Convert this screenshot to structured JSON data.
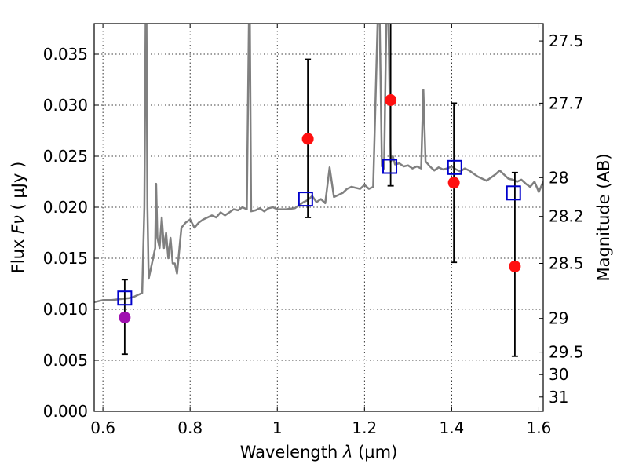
{
  "chart_data": {
    "type": "scatter",
    "xlabel": "Wavelength",
    "xlabel_symbol": "λ",
    "xlabel_unit": "(μm)",
    "ylabel": "Flux",
    "ylabel_symbol": "Fν",
    "ylabel_unit": "( μJy )",
    "y2label": "Magnitude (AB)",
    "xlim": [
      0.58,
      1.61
    ],
    "ylim": [
      0.0,
      0.038
    ],
    "grid": true,
    "x_ticks": [
      {
        "value": 0.6,
        "label": "0.6"
      },
      {
        "value": 0.8,
        "label": "0.8"
      },
      {
        "value": 1.0,
        "label": "1"
      },
      {
        "value": 1.2,
        "label": "1.2"
      },
      {
        "value": 1.4,
        "label": "1.4"
      },
      {
        "value": 1.6,
        "label": "1.6"
      }
    ],
    "y_ticks": [
      {
        "value": 0.0,
        "label": "0.000"
      },
      {
        "value": 0.005,
        "label": "0.005"
      },
      {
        "value": 0.01,
        "label": "0.010"
      },
      {
        "value": 0.015,
        "label": "0.015"
      },
      {
        "value": 0.02,
        "label": "0.020"
      },
      {
        "value": 0.025,
        "label": "0.025"
      },
      {
        "value": 0.03,
        "label": "0.030"
      },
      {
        "value": 0.035,
        "label": "0.035"
      }
    ],
    "y2_ticks": [
      {
        "flux": 0.0363,
        "label": "27.5"
      },
      {
        "flux": 0.0302,
        "label": "27.7"
      },
      {
        "flux": 0.0229,
        "label": "28"
      },
      {
        "flux": 0.0191,
        "label": "28.2"
      },
      {
        "flux": 0.0145,
        "label": "28.5"
      },
      {
        "flux": 0.0091,
        "label": "29"
      },
      {
        "flux": 0.0058,
        "label": "29.5"
      },
      {
        "flux": 0.0036,
        "label": "30"
      },
      {
        "flux": 0.0014,
        "label": "31"
      }
    ],
    "series": [
      {
        "type": "line",
        "color": "#808080",
        "x": [
          0.58,
          0.6,
          0.62,
          0.64,
          0.66,
          0.67,
          0.68,
          0.69,
          0.695,
          0.698,
          0.7,
          0.702,
          0.705,
          0.71,
          0.715,
          0.72,
          0.722,
          0.725,
          0.73,
          0.735,
          0.74,
          0.745,
          0.75,
          0.755,
          0.76,
          0.765,
          0.77,
          0.78,
          0.79,
          0.8,
          0.81,
          0.82,
          0.83,
          0.84,
          0.85,
          0.86,
          0.87,
          0.88,
          0.89,
          0.9,
          0.91,
          0.92,
          0.93,
          0.935,
          0.937,
          0.94,
          0.95,
          0.96,
          0.97,
          0.98,
          0.99,
          1.0,
          1.02,
          1.04,
          1.06,
          1.07,
          1.08,
          1.09,
          1.1,
          1.11,
          1.12,
          1.13,
          1.14,
          1.15,
          1.16,
          1.17,
          1.18,
          1.19,
          1.2,
          1.21,
          1.22,
          1.23,
          1.235,
          1.24,
          1.245,
          1.25,
          1.255,
          1.26,
          1.265,
          1.27,
          1.28,
          1.29,
          1.3,
          1.31,
          1.32,
          1.33,
          1.335,
          1.34,
          1.35,
          1.36,
          1.37,
          1.38,
          1.39,
          1.4,
          1.41,
          1.42,
          1.43,
          1.44,
          1.45,
          1.46,
          1.47,
          1.48,
          1.49,
          1.5,
          1.51,
          1.52,
          1.53,
          1.54,
          1.55,
          1.56,
          1.57,
          1.58,
          1.59,
          1.6,
          1.61
        ],
        "y": [
          0.0107,
          0.0109,
          0.0109,
          0.011,
          0.0111,
          0.0112,
          0.0114,
          0.0116,
          0.02,
          0.038,
          0.038,
          0.02,
          0.013,
          0.014,
          0.015,
          0.016,
          0.0223,
          0.017,
          0.016,
          0.019,
          0.016,
          0.0175,
          0.015,
          0.017,
          0.0145,
          0.0145,
          0.0135,
          0.018,
          0.0185,
          0.0188,
          0.018,
          0.0185,
          0.0188,
          0.019,
          0.0192,
          0.019,
          0.0195,
          0.0192,
          0.0195,
          0.0198,
          0.0197,
          0.02,
          0.0198,
          0.038,
          0.038,
          0.0196,
          0.0197,
          0.0199,
          0.0196,
          0.0199,
          0.02,
          0.0198,
          0.0198,
          0.0199,
          0.0205,
          0.0207,
          0.0211,
          0.0205,
          0.0208,
          0.0204,
          0.0239,
          0.021,
          0.0212,
          0.0214,
          0.0218,
          0.022,
          0.0219,
          0.0218,
          0.0222,
          0.0218,
          0.022,
          0.038,
          0.038,
          0.024,
          0.0238,
          0.038,
          0.038,
          0.0244,
          0.025,
          0.0242,
          0.0243,
          0.024,
          0.0241,
          0.0238,
          0.024,
          0.0238,
          0.0315,
          0.0245,
          0.024,
          0.0236,
          0.0239,
          0.0237,
          0.0238,
          0.024,
          0.0237,
          0.0235,
          0.0238,
          0.0236,
          0.0233,
          0.023,
          0.0228,
          0.0226,
          0.0229,
          0.0232,
          0.0236,
          0.0232,
          0.0228,
          0.0227,
          0.0225,
          0.0227,
          0.0223,
          0.022,
          0.0225,
          0.0215,
          0.0225
        ]
      },
      {
        "type": "errorbar",
        "color": "#000000",
        "x": [
          0.65,
          1.07,
          1.26,
          1.405,
          1.545
        ],
        "lower": [
          0.0056,
          0.019,
          0.0221,
          0.0146,
          0.0054
        ],
        "upper": [
          0.0129,
          0.0345,
          0.038,
          0.0302,
          0.0234
        ]
      },
      {
        "type": "marker",
        "marker": "circle",
        "points": [
          {
            "x": 0.65,
            "y": 0.0092,
            "color": "#a010b0"
          },
          {
            "x": 1.07,
            "y": 0.0267,
            "color": "#ff1010"
          },
          {
            "x": 1.26,
            "y": 0.0305,
            "color": "#ff1010"
          },
          {
            "x": 1.405,
            "y": 0.0224,
            "color": "#ff1010"
          },
          {
            "x": 1.545,
            "y": 0.0142,
            "color": "#ff1010"
          }
        ]
      },
      {
        "type": "marker",
        "marker": "square-open",
        "color": "#0000cc",
        "x": [
          0.65,
          1.065,
          1.258,
          1.407,
          1.542
        ],
        "y": [
          0.0111,
          0.0208,
          0.024,
          0.0239,
          0.0214
        ]
      }
    ]
  }
}
